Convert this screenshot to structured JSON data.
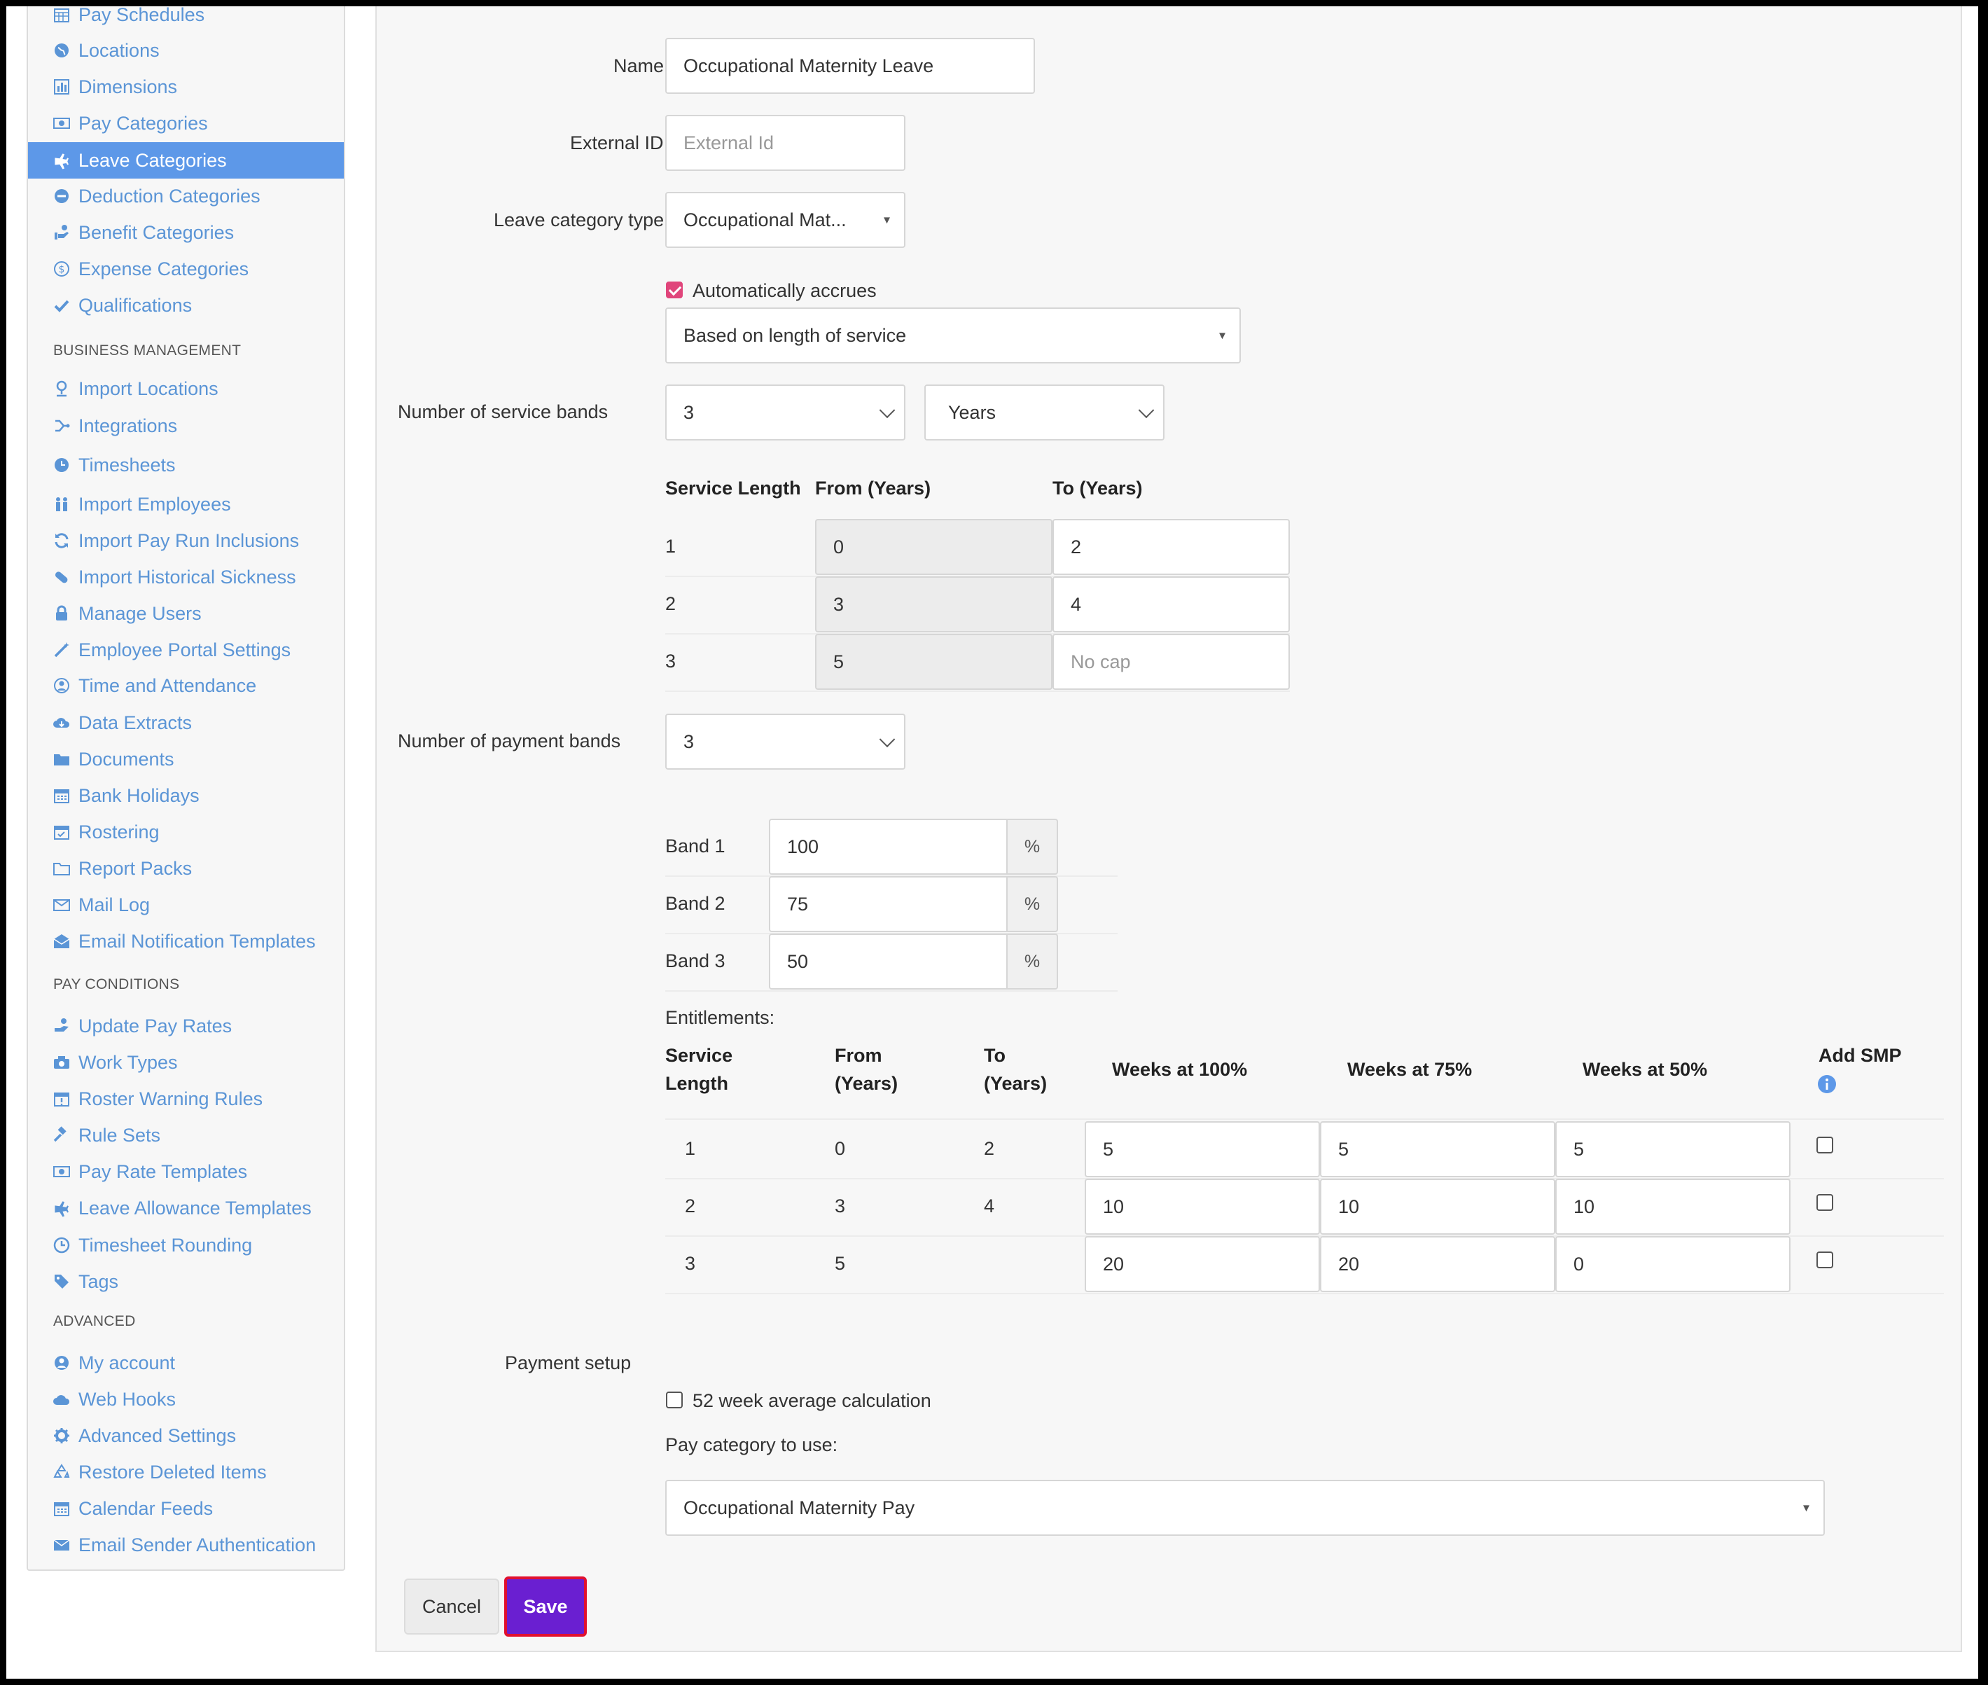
{
  "sidebar": {
    "items": [
      {
        "label": "Pay Schedules",
        "icon": "calendar-grid-icon"
      },
      {
        "label": "Locations",
        "icon": "globe-icon"
      },
      {
        "label": "Dimensions",
        "icon": "bar-chart-icon"
      },
      {
        "label": "Pay Categories",
        "icon": "money-icon"
      },
      {
        "label": "Leave Categories",
        "icon": "plane-icon"
      },
      {
        "label": "Deduction Categories",
        "icon": "minus-circle-icon"
      },
      {
        "label": "Benefit Categories",
        "icon": "hand-coins-icon"
      },
      {
        "label": "Expense Categories",
        "icon": "dollar-circle-icon"
      },
      {
        "label": "Qualifications",
        "icon": "check-icon"
      }
    ],
    "sections": {
      "business_management": "BUSINESS MANAGEMENT",
      "pay_conditions": "PAY CONDITIONS",
      "advanced": "ADVANCED"
    },
    "business_items": [
      {
        "label": "Import Locations",
        "icon": "map-pin-icon"
      },
      {
        "label": "Integrations",
        "icon": "integrations-icon"
      },
      {
        "label": "Timesheets",
        "icon": "clock-icon"
      },
      {
        "label": "Import Employees",
        "icon": "users-icon"
      },
      {
        "label": "Import Pay Run Inclusions",
        "icon": "refresh-icon"
      },
      {
        "label": "Import Historical Sickness",
        "icon": "pill-icon"
      },
      {
        "label": "Manage Users",
        "icon": "lock-icon"
      },
      {
        "label": "Employee Portal Settings",
        "icon": "wand-icon"
      },
      {
        "label": "Time and Attendance",
        "icon": "user-clock-icon"
      },
      {
        "label": "Data Extracts",
        "icon": "cloud-download-icon"
      },
      {
        "label": "Documents",
        "icon": "folder-icon"
      },
      {
        "label": "Bank Holidays",
        "icon": "calendar-icon"
      },
      {
        "label": "Rostering",
        "icon": "calendar-check-icon"
      },
      {
        "label": "Report Packs",
        "icon": "folder-open-icon"
      },
      {
        "label": "Mail Log",
        "icon": "envelope-outline-icon"
      },
      {
        "label": "Email Notification Templates",
        "icon": "envelope-open-icon"
      }
    ],
    "pay_items": [
      {
        "label": "Update Pay Rates",
        "icon": "hand-money-icon"
      },
      {
        "label": "Work Types",
        "icon": "camera-icon"
      },
      {
        "label": "Roster Warning Rules",
        "icon": "calendar-alert-icon"
      },
      {
        "label": "Rule Sets",
        "icon": "gavel-icon"
      },
      {
        "label": "Pay Rate Templates",
        "icon": "money-icon"
      },
      {
        "label": "Leave Allowance Templates",
        "icon": "plane-icon"
      },
      {
        "label": "Timesheet Rounding",
        "icon": "clock-outline-icon"
      },
      {
        "label": "Tags",
        "icon": "tag-icon"
      }
    ],
    "advanced_items": [
      {
        "label": "My account",
        "icon": "user-circle-icon"
      },
      {
        "label": "Web Hooks",
        "icon": "cloud-icon"
      },
      {
        "label": "Advanced Settings",
        "icon": "gear-icon"
      },
      {
        "label": "Restore Deleted Items",
        "icon": "recycle-icon"
      },
      {
        "label": "Calendar Feeds",
        "icon": "calendar-icon"
      },
      {
        "label": "Email Sender Authentication",
        "icon": "envelope-icon"
      }
    ]
  },
  "form": {
    "name_label": "Name",
    "name_value": "Occupational Maternity Leave",
    "external_id_label": "External ID",
    "external_id_placeholder": "External Id",
    "leave_type_label": "Leave category type",
    "leave_type_value": "Occupational Mat...",
    "auto_accrues_label": "Automatically accrues",
    "auto_accrues_checked": true,
    "accrual_basis": "Based on length of service",
    "service_bands_label": "Number of service bands",
    "service_bands_value": "3",
    "service_unit": "Years",
    "service_table": {
      "headers": [
        "Service Length",
        "From (Years)",
        "To (Years)"
      ],
      "rows": [
        {
          "n": "1",
          "from": "0",
          "to": "2",
          "to_placeholder": ""
        },
        {
          "n": "2",
          "from": "3",
          "to": "4",
          "to_placeholder": ""
        },
        {
          "n": "3",
          "from": "5",
          "to": "",
          "to_placeholder": "No cap"
        }
      ]
    },
    "payment_bands_label": "Number of payment bands",
    "payment_bands_value": "3",
    "bands": [
      {
        "label": "Band 1",
        "value": "100",
        "unit": "%"
      },
      {
        "label": "Band 2",
        "value": "75",
        "unit": "%"
      },
      {
        "label": "Band 3",
        "value": "50",
        "unit": "%"
      }
    ],
    "entitlements_label": "Entitlements:",
    "ent_headers": {
      "service_1": "Service",
      "service_2": "Length",
      "from_1": "From",
      "from_2": "(Years)",
      "to_1": "To",
      "to_2": "(Years)",
      "w100": "Weeks at 100%",
      "w75": "Weeks at 75%",
      "w50": "Weeks at 50%",
      "smp": "Add SMP"
    },
    "ent_rows": [
      {
        "n": "1",
        "from": "0",
        "to": "2",
        "w100": "5",
        "w75": "5",
        "w50": "5",
        "smp": false
      },
      {
        "n": "2",
        "from": "3",
        "to": "4",
        "w100": "10",
        "w75": "10",
        "w50": "10",
        "smp": false
      },
      {
        "n": "3",
        "from": "5",
        "to": "",
        "w100": "20",
        "w75": "20",
        "w50": "0",
        "smp": false
      }
    ],
    "payment_setup_label": "Payment setup",
    "avg_calc_label": "52 week average calculation",
    "avg_calc_checked": false,
    "pay_category_label": "Pay category to use:",
    "pay_category_value": "Occupational Maternity Pay"
  },
  "actions": {
    "cancel": "Cancel",
    "save": "Save"
  },
  "colors": {
    "accent": "#5d98e8",
    "link": "#5b95d6",
    "save_bg": "#6a1fd1",
    "save_border": "#e0102f",
    "checkbox_on": "#e0457b",
    "info": "#5d98e8"
  }
}
